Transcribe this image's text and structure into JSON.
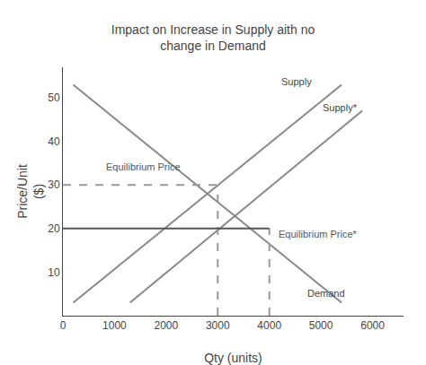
{
  "chart_data": {
    "type": "line",
    "title": "Impact on Increase in Supply aith no\nchange in Demand",
    "xlabel": "Qty (units)",
    "ylabel": "Price/Unit\n($)",
    "xlim": [
      0,
      6600
    ],
    "ylim": [
      0,
      57
    ],
    "xticks": [
      0,
      1000,
      2000,
      3000,
      4000,
      5000,
      6000
    ],
    "yticks": [
      10,
      20,
      30,
      40,
      50
    ],
    "grid": false,
    "series": [
      {
        "name": "Supply",
        "color": "#888888",
        "line_style": "solid",
        "x": [
          200,
          5400
        ],
        "values": [
          3.0,
          53.0
        ]
      },
      {
        "name": "Supply*",
        "color": "#888888",
        "line_style": "solid",
        "x": [
          1300,
          5800
        ],
        "values": [
          3.0,
          47.0
        ]
      },
      {
        "name": "Demand",
        "color": "#888888",
        "line_style": "solid",
        "x": [
          200,
          5400
        ],
        "values": [
          53.0,
          3.0
        ]
      },
      {
        "color": "#999999",
        "line_style": "dashed",
        "x": [
          3000,
          3000
        ],
        "values": [
          0,
          30
        ]
      },
      {
        "color": "#999999",
        "line_style": "dashed",
        "x": [
          0,
          3000
        ],
        "values": [
          30,
          30
        ]
      },
      {
        "color": "#999999",
        "line_style": "dashed",
        "x": [
          4000,
          4000
        ],
        "values": [
          0,
          20
        ]
      },
      {
        "color": "#555555",
        "line_style": "solid",
        "x": [
          0,
          4000
        ],
        "values": [
          20,
          20
        ]
      }
    ],
    "annotations": [
      {
        "text": "Supply",
        "x": 4200,
        "y": 52,
        "color": "#444444"
      },
      {
        "text": "Supply*",
        "x": 5000,
        "y": 46,
        "color": "#444444"
      },
      {
        "text": "Demand",
        "x": 4700,
        "y": 3.5,
        "color": "#444444"
      },
      {
        "text": "Equilibrium Price",
        "x": 800,
        "y": 32.5,
        "color": "#555555"
      },
      {
        "text": "Equilibrium Price*",
        "x": 4150,
        "y": 17,
        "color": "#555555"
      }
    ]
  }
}
